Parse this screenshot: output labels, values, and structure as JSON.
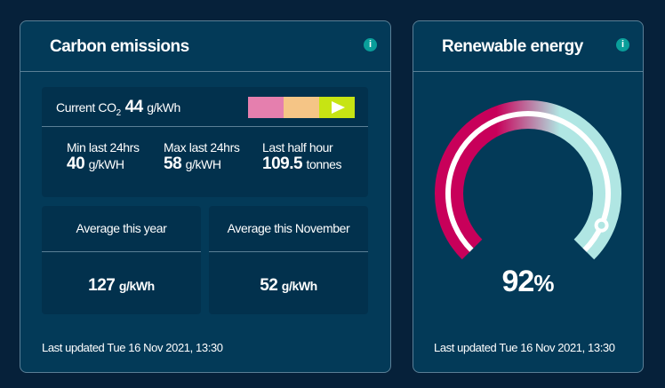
{
  "carbon": {
    "title": "Carbon emissions",
    "info_icon": "i",
    "current_label": "Current CO",
    "current_sub": "2",
    "current_value": "44",
    "current_unit": "g/kWh",
    "scale_colors": [
      "#e57fae",
      "#f5c586",
      "#c7e413"
    ],
    "stats": [
      {
        "label": "Min last 24hrs",
        "value": "40",
        "unit": "g/kWH"
      },
      {
        "label": "Max last 24hrs",
        "value": "58",
        "unit": "g/kWH"
      },
      {
        "label": "Last half hour",
        "value": "109.5",
        "unit": "tonnes"
      }
    ],
    "averages": [
      {
        "label": "Average this year",
        "value": "127",
        "unit": "g/kWh"
      },
      {
        "label": "Average this November",
        "value": "52",
        "unit": "g/kWh"
      }
    ],
    "footer": "Last updated Tue 16 Nov 2021, 13:30"
  },
  "renewable": {
    "title": "Renewable energy",
    "info_icon": "i",
    "percent": 92,
    "percent_label": "92",
    "percent_sign": "%",
    "gradient_colors": [
      "#c8005a",
      "#b0e6e3"
    ],
    "footer": "Last updated Tue 16 Nov 2021, 13:30"
  }
}
